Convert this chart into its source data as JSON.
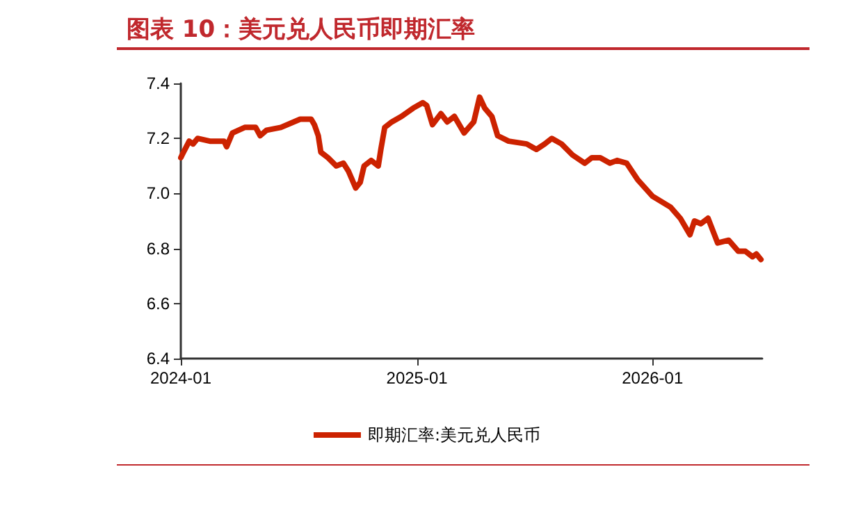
{
  "chart_data": {
    "type": "line",
    "title": "图表 10：美元兑人民币即期汇率",
    "x": [
      "2024-01-01",
      "2024-01-03",
      "2024-01-14",
      "2024-01-20",
      "2024-01-27",
      "2024-02-15",
      "2024-03-08",
      "2024-03-12",
      "2024-03-21",
      "2024-04-09",
      "2024-04-26",
      "2024-05-03",
      "2024-05-13",
      "2024-06-04",
      "2024-07-04",
      "2024-07-21",
      "2024-07-26",
      "2024-08-01",
      "2024-08-05",
      "2024-08-16",
      "2024-08-29",
      "2024-09-09",
      "2024-09-17",
      "2024-09-28",
      "2024-10-05",
      "2024-10-11",
      "2024-10-22",
      "2024-11-02",
      "2024-11-06",
      "2024-11-12",
      "2024-11-23",
      "2024-12-08",
      "2024-12-26",
      "2025-01-10",
      "2025-01-16",
      "2025-01-25",
      "2025-02-07",
      "2025-02-17",
      "2025-02-28",
      "2025-03-15",
      "2025-03-30",
      "2025-04-08",
      "2025-04-16",
      "2025-04-27",
      "2025-05-06",
      "2025-05-23",
      "2025-06-20",
      "2025-07-05",
      "2025-07-18",
      "2025-07-29",
      "2025-08-13",
      "2025-08-30",
      "2025-09-18",
      "2025-09-29",
      "2025-10-12",
      "2025-10-27",
      "2025-11-07",
      "2025-11-22",
      "2025-12-09",
      "2026-01-01",
      "2026-01-29",
      "2026-02-13",
      "2026-02-28",
      "2026-03-07",
      "2026-03-17",
      "2026-03-28",
      "2026-04-12",
      "2026-04-29",
      "2026-05-14",
      "2026-05-25",
      "2026-06-05",
      "2026-06-11",
      "2026-06-18"
    ],
    "series": [
      {
        "name": "即期汇率:美元兑人民币",
        "color": "#cc2200",
        "values": [
          7.13,
          7.14,
          7.19,
          7.18,
          7.2,
          7.19,
          7.19,
          7.17,
          7.22,
          7.24,
          7.24,
          7.21,
          7.23,
          7.24,
          7.27,
          7.27,
          7.25,
          7.21,
          7.15,
          7.13,
          7.1,
          7.11,
          7.08,
          7.02,
          7.04,
          7.1,
          7.12,
          7.1,
          7.16,
          7.24,
          7.26,
          7.28,
          7.31,
          7.33,
          7.32,
          7.25,
          7.29,
          7.26,
          7.28,
          7.22,
          7.26,
          7.35,
          7.31,
          7.28,
          7.21,
          7.19,
          7.18,
          7.16,
          7.18,
          7.2,
          7.18,
          7.14,
          7.11,
          7.13,
          7.13,
          7.11,
          7.12,
          7.11,
          7.05,
          6.99,
          6.95,
          6.91,
          6.85,
          6.9,
          6.89,
          6.91,
          6.82,
          6.83,
          6.79,
          6.79,
          6.77,
          6.78,
          6.76
        ]
      }
    ],
    "xlim": [
      "2024-01-01",
      "2026-06-20"
    ],
    "xticks": [
      {
        "value": "2024-01",
        "label": "2024-01"
      },
      {
        "value": "2025-01",
        "label": "2025-01"
      },
      {
        "value": "2026-01",
        "label": "2026-01"
      }
    ],
    "ylim": [
      6.4,
      7.4
    ],
    "yticks": [
      {
        "value": 6.4,
        "label": "6.4"
      },
      {
        "value": 6.6,
        "label": "6.6"
      },
      {
        "value": 6.8,
        "label": "6.8"
      },
      {
        "value": 7.0,
        "label": "7.0"
      },
      {
        "value": 7.2,
        "label": "7.2"
      },
      {
        "value": 7.4,
        "label": "7.4"
      }
    ],
    "grid": false,
    "legend": "bottom",
    "marker": "none",
    "line_style": "solid"
  }
}
